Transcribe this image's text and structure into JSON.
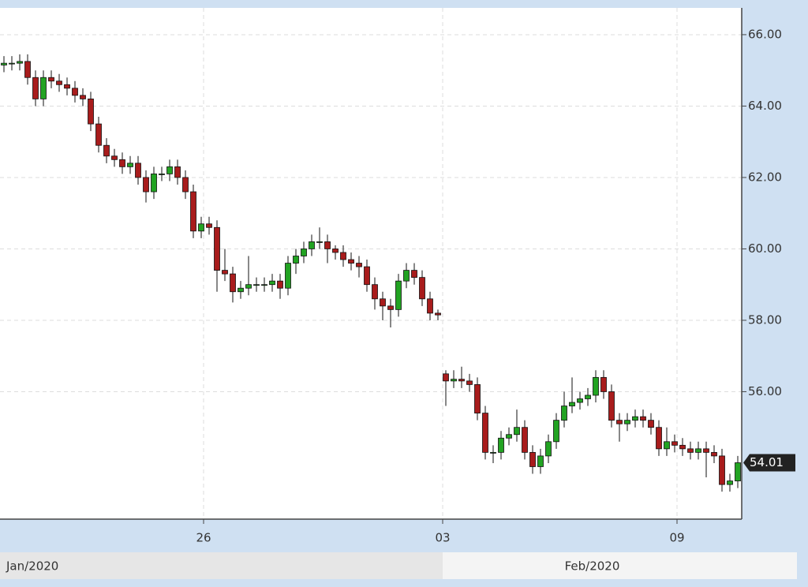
{
  "chart_data": {
    "type": "candlestick",
    "x": [
      0,
      1,
      2,
      3,
      4,
      5,
      6,
      7,
      8,
      9,
      10,
      11,
      12,
      13,
      14,
      15,
      16,
      17,
      18,
      19,
      20,
      21,
      22,
      23,
      24,
      25,
      26,
      27,
      28,
      29,
      30,
      31,
      32,
      33,
      34,
      35,
      36,
      37,
      38,
      39,
      40,
      41,
      42,
      43,
      44,
      45,
      46,
      47,
      48,
      49,
      50,
      51,
      52,
      53,
      54,
      55,
      56,
      57,
      58,
      59,
      60,
      61,
      62,
      63,
      64,
      65,
      66,
      67,
      68,
      69,
      70,
      71,
      72,
      73,
      74,
      75,
      76,
      77,
      78,
      79,
      80,
      81,
      82,
      83,
      84,
      85,
      86,
      87,
      88,
      89,
      90,
      91,
      92,
      93
    ],
    "open": [
      65.15,
      65.2,
      65.2,
      65.25,
      64.8,
      64.2,
      64.8,
      64.7,
      64.6,
      64.5,
      64.3,
      64.2,
      63.5,
      62.9,
      62.6,
      62.5,
      62.3,
      62.4,
      62.0,
      61.6,
      62.1,
      62.1,
      62.3,
      62.0,
      61.6,
      60.5,
      60.7,
      60.6,
      59.4,
      59.3,
      58.8,
      58.9,
      59.0,
      59.0,
      59.0,
      59.1,
      58.9,
      59.6,
      59.8,
      60.0,
      60.2,
      60.2,
      60.0,
      59.9,
      59.7,
      59.6,
      59.5,
      59.0,
      58.6,
      58.4,
      58.3,
      59.1,
      59.4,
      59.2,
      58.6,
      58.2,
      56.5,
      56.3,
      56.35,
      56.3,
      56.2,
      55.4,
      54.3,
      54.3,
      54.7,
      54.8,
      55.0,
      54.3,
      53.9,
      54.2,
      54.6,
      55.2,
      55.6,
      55.7,
      55.8,
      55.9,
      56.4,
      56.0,
      55.2,
      55.1,
      55.2,
      55.3,
      55.2,
      55.0,
      54.4,
      54.6,
      54.5,
      54.4,
      54.3,
      54.4,
      54.3,
      54.2,
      53.4,
      53.5
    ],
    "high": [
      65.4,
      65.4,
      65.45,
      65.45,
      65.0,
      65.0,
      65.0,
      64.9,
      64.8,
      64.7,
      64.5,
      64.4,
      63.7,
      63.1,
      62.8,
      62.7,
      62.6,
      62.6,
      62.2,
      62.3,
      62.3,
      62.5,
      62.5,
      62.2,
      61.8,
      60.9,
      60.9,
      60.8,
      60.0,
      59.5,
      59.1,
      59.8,
      59.2,
      59.2,
      59.3,
      59.3,
      59.8,
      60.0,
      60.2,
      60.4,
      60.6,
      60.4,
      60.1,
      60.1,
      59.9,
      59.8,
      59.7,
      59.2,
      58.8,
      58.6,
      59.3,
      59.6,
      59.6,
      59.4,
      58.8,
      58.3,
      56.6,
      56.6,
      56.7,
      56.5,
      56.4,
      55.6,
      54.5,
      54.9,
      55.0,
      55.5,
      55.2,
      54.5,
      54.4,
      54.8,
      55.4,
      56.0,
      56.4,
      56.0,
      56.1,
      56.6,
      56.6,
      56.2,
      55.4,
      55.4,
      55.5,
      55.5,
      55.4,
      55.2,
      55.0,
      54.8,
      54.7,
      54.6,
      54.6,
      54.6,
      54.5,
      54.4,
      53.7,
      54.2
    ],
    "low": [
      64.95,
      65.0,
      65.0,
      64.6,
      64.0,
      64.0,
      64.5,
      64.4,
      64.3,
      64.1,
      64.0,
      63.3,
      62.7,
      62.4,
      62.3,
      62.1,
      62.1,
      61.8,
      61.3,
      61.4,
      61.9,
      61.9,
      61.8,
      61.4,
      60.3,
      60.3,
      60.4,
      58.8,
      59.1,
      58.5,
      58.6,
      58.7,
      58.8,
      58.8,
      58.8,
      58.6,
      58.7,
      59.3,
      59.6,
      59.8,
      60.0,
      59.6,
      59.7,
      59.5,
      59.4,
      59.2,
      58.8,
      58.3,
      58.0,
      57.8,
      58.1,
      58.9,
      59.0,
      58.4,
      58.0,
      58.0,
      55.6,
      56.1,
      56.1,
      56.0,
      55.2,
      54.1,
      54.0,
      54.1,
      54.5,
      54.6,
      54.1,
      53.7,
      53.7,
      54.0,
      54.4,
      55.0,
      55.4,
      55.5,
      55.6,
      55.7,
      55.8,
      55.0,
      54.6,
      54.9,
      55.0,
      55.0,
      54.8,
      54.2,
      54.2,
      54.3,
      54.2,
      54.1,
      54.1,
      53.6,
      54.0,
      53.2,
      53.2,
      53.3
    ],
    "close": [
      65.2,
      65.2,
      65.25,
      64.8,
      64.2,
      64.8,
      64.7,
      64.6,
      64.5,
      64.3,
      64.2,
      63.5,
      62.9,
      62.6,
      62.5,
      62.3,
      62.4,
      62.0,
      61.6,
      62.1,
      62.1,
      62.3,
      62.0,
      61.6,
      60.5,
      60.7,
      60.6,
      59.4,
      59.3,
      58.8,
      58.9,
      59.0,
      59.0,
      59.0,
      59.1,
      58.9,
      59.6,
      59.8,
      60.0,
      60.2,
      60.2,
      60.0,
      59.9,
      59.7,
      59.6,
      59.5,
      59.0,
      58.6,
      58.4,
      58.3,
      59.1,
      59.4,
      59.2,
      58.6,
      58.2,
      58.15,
      56.3,
      56.35,
      56.3,
      56.2,
      55.4,
      54.3,
      54.3,
      54.7,
      54.8,
      55.0,
      54.3,
      53.9,
      54.2,
      54.6,
      55.2,
      55.6,
      55.7,
      55.8,
      55.9,
      56.4,
      56.0,
      55.2,
      55.1,
      55.2,
      55.3,
      55.2,
      55.0,
      54.4,
      54.6,
      54.5,
      54.4,
      54.3,
      54.4,
      54.3,
      54.2,
      53.4,
      53.5,
      54.01
    ],
    "up_color": "#22a322",
    "down_color": "#a81c1c",
    "xlim": [
      -0.5,
      93.5
    ],
    "xticks": [
      {
        "value": 25.3,
        "label": "26"
      },
      {
        "value": 55.6,
        "label": "03"
      },
      {
        "value": 85.3,
        "label": "09"
      }
    ],
    "periods": [
      {
        "label": "Jan/2020",
        "start": -0.5,
        "end": 55.6
      },
      {
        "label": "Feb/2020",
        "start": 55.6,
        "end": 93.5
      }
    ],
    "ylim": [
      52.43,
      66.75
    ],
    "yticks": [
      {
        "value": 56,
        "label": "56.00"
      },
      {
        "value": 58,
        "label": "58.00"
      },
      {
        "value": 60,
        "label": "60.00"
      },
      {
        "value": 62,
        "label": "62.00"
      },
      {
        "value": 64,
        "label": "64.00"
      },
      {
        "value": 66,
        "label": "66.00"
      }
    ],
    "last_price": 54.01,
    "grid": true
  }
}
